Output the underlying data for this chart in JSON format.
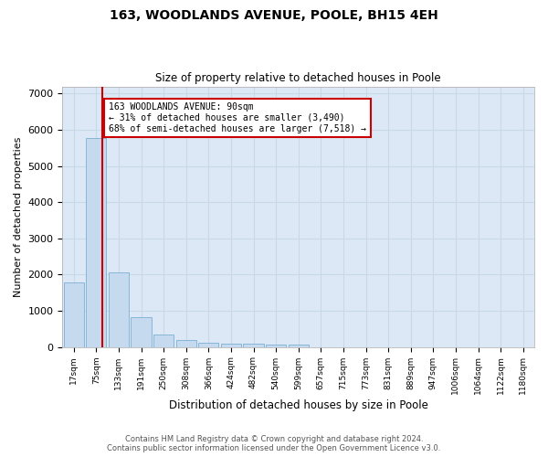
{
  "title": "163, WOODLANDS AVENUE, POOLE, BH15 4EH",
  "subtitle": "Size of property relative to detached houses in Poole",
  "xlabel": "Distribution of detached houses by size in Poole",
  "ylabel": "Number of detached properties",
  "bar_labels": [
    "17sqm",
    "75sqm",
    "133sqm",
    "191sqm",
    "250sqm",
    "308sqm",
    "366sqm",
    "424sqm",
    "482sqm",
    "540sqm",
    "599sqm",
    "657sqm",
    "715sqm",
    "773sqm",
    "831sqm",
    "889sqm",
    "947sqm",
    "1006sqm",
    "1064sqm",
    "1122sqm",
    "1180sqm"
  ],
  "bar_values": [
    1780,
    5780,
    2060,
    820,
    340,
    185,
    115,
    100,
    95,
    70,
    60,
    0,
    0,
    0,
    0,
    0,
    0,
    0,
    0,
    0,
    0
  ],
  "bar_color": "#c5d9ef",
  "bar_edge_color": "#7bafd4",
  "grid_color": "#c8d8e8",
  "bg_color": "#dce8f5",
  "annotation_text": "163 WOODLANDS AVENUE: 90sqm\n← 31% of detached houses are smaller (3,490)\n68% of semi-detached houses are larger (7,518) →",
  "annotation_box_color": "#cc0000",
  "red_line_color": "#cc0000",
  "ylim": [
    0,
    7200
  ],
  "yticks": [
    0,
    1000,
    2000,
    3000,
    4000,
    5000,
    6000,
    7000
  ],
  "footer_line1": "Contains HM Land Registry data © Crown copyright and database right 2024.",
  "footer_line2": "Contains public sector information licensed under the Open Government Licence v3.0."
}
